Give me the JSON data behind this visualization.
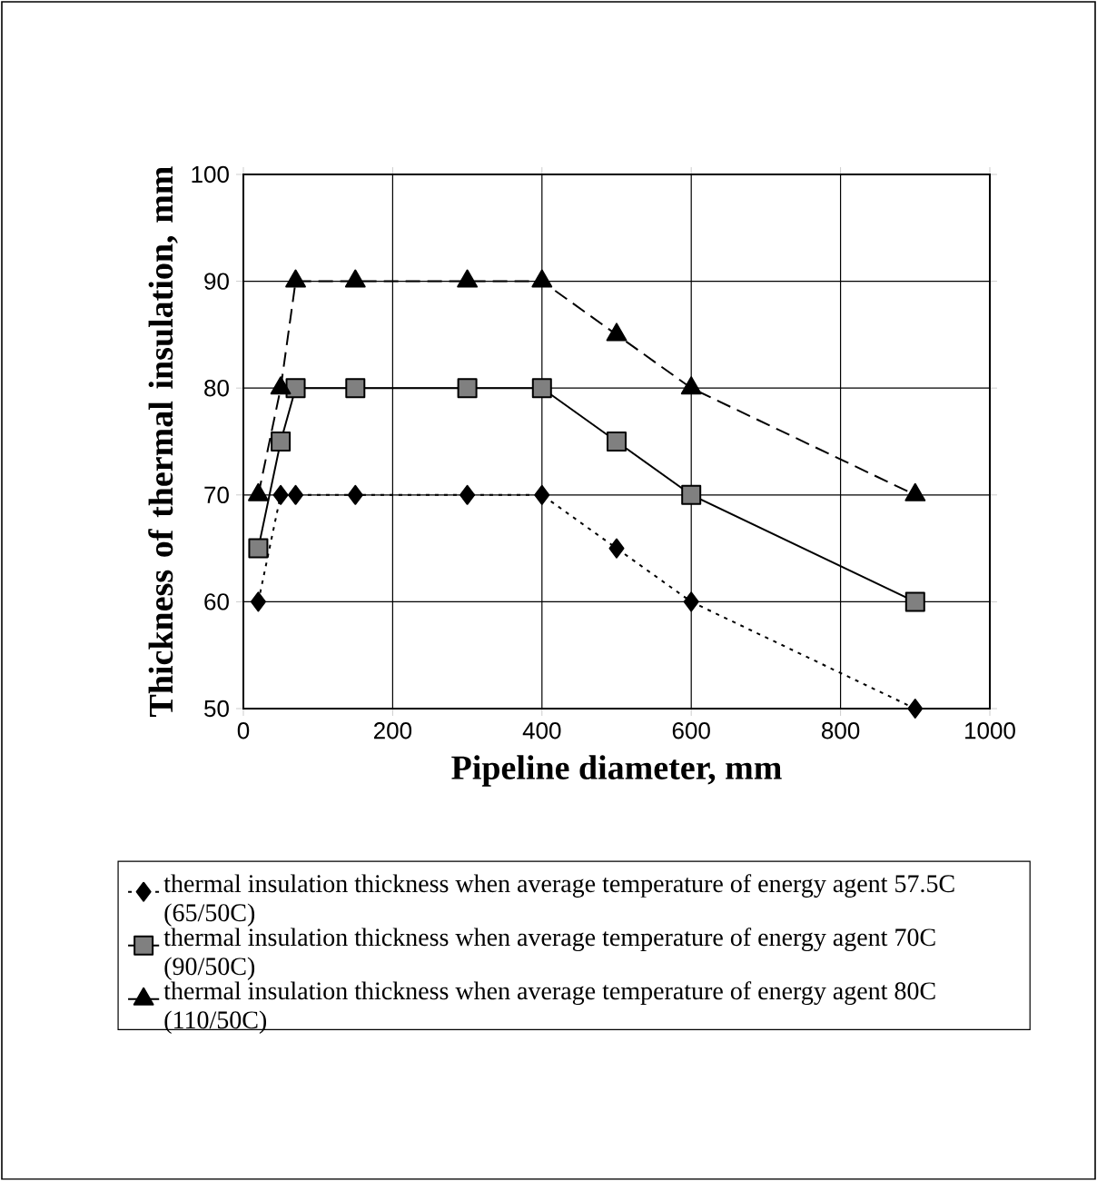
{
  "chart_data": {
    "type": "line",
    "xlabel": "Pipeline diameter, mm",
    "ylabel": "Thickness of thermal insulation, mm",
    "x": [
      20,
      50,
      70,
      150,
      300,
      400,
      500,
      600,
      900
    ],
    "series": [
      {
        "name": "thermal insulation thickness when average temperature of energy agent 57.5C (65/50C)",
        "color": "#000000",
        "marker": "diamond",
        "line_style": "dotted",
        "values": [
          60,
          70,
          70,
          70,
          70,
          70,
          65,
          60,
          50
        ]
      },
      {
        "name": "thermal insulation thickness when average temperature of energy agent 70C (90/50C)",
        "color": "#000000",
        "marker": "square",
        "line_style": "solid",
        "values": [
          65,
          75,
          80,
          80,
          80,
          80,
          75,
          70,
          60
        ]
      },
      {
        "name": "thermal insulation thickness when average temperature of energy agent 80C (110/50C)",
        "color": "#000000",
        "marker": "triangle",
        "line_style": "dashed",
        "values": [
          70,
          80,
          90,
          90,
          90,
          90,
          85,
          80,
          70
        ]
      }
    ],
    "xlim": [
      0,
      1000
    ],
    "ylim": [
      50,
      100
    ],
    "xticks": [
      0,
      200,
      400,
      600,
      800,
      1000
    ],
    "yticks": [
      50,
      60,
      70,
      80,
      90,
      100
    ],
    "grid": true,
    "legend": "bottom"
  }
}
